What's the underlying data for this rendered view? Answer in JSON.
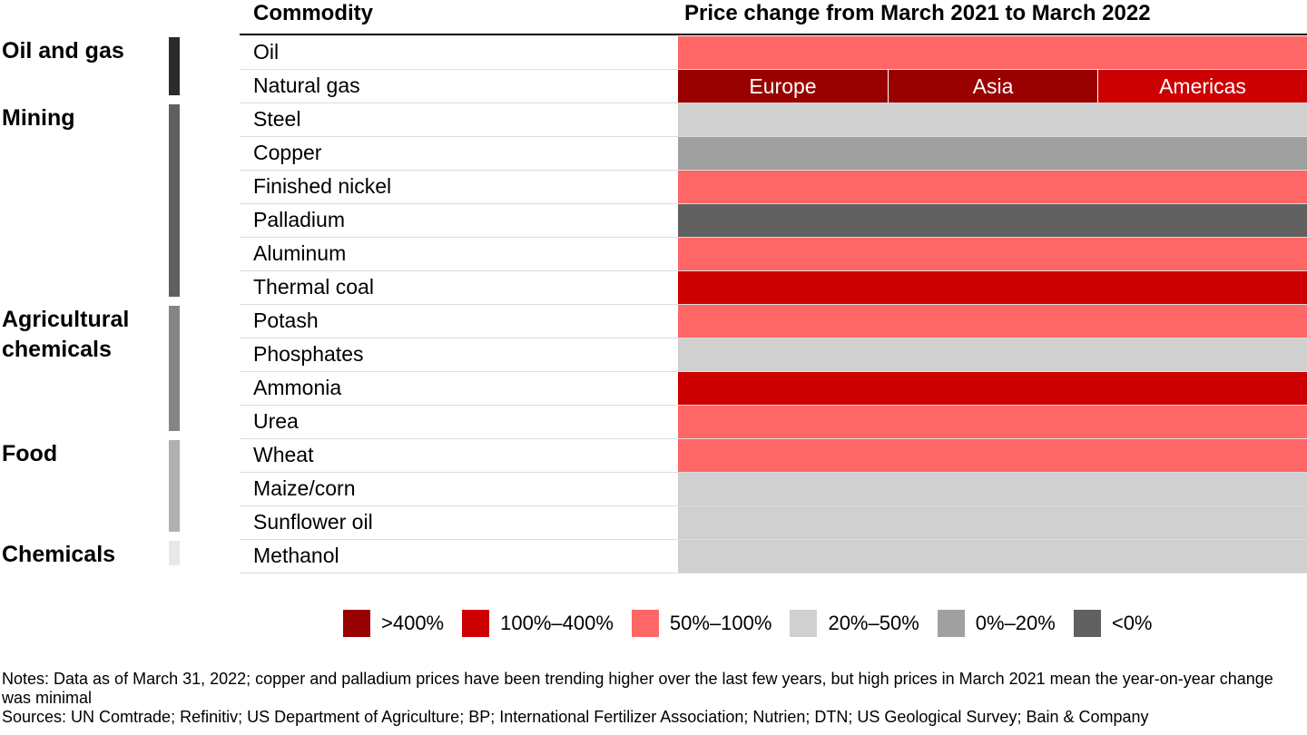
{
  "header": {
    "commodity": "Commodity",
    "change": "Price change from March 2021 to March 2022"
  },
  "groups": [
    {
      "label": "Oil and gas",
      "color": "#2b2b2b",
      "rows": [
        {
          "name": "Oil",
          "color": "#ff6666"
        },
        {
          "name": "Natural gas",
          "regions": [
            {
              "label": "Europe",
              "color": "#990000"
            },
            {
              "label": "Asia",
              "color": "#990000"
            },
            {
              "label": "Americas",
              "color": "#cc0000"
            }
          ]
        }
      ]
    },
    {
      "label": "Mining",
      "color": "#5f5f5f",
      "rows": [
        {
          "name": "Steel",
          "color": "#d0d0d0"
        },
        {
          "name": "Copper",
          "color": "#a0a0a0"
        },
        {
          "name": "Finished nickel",
          "color": "#ff6666"
        },
        {
          "name": "Palladium",
          "color": "#606060"
        },
        {
          "name": "Aluminum",
          "color": "#ff6666"
        },
        {
          "name": "Thermal coal",
          "color": "#cc0000"
        }
      ]
    },
    {
      "label": "Agricultural chemicals",
      "color": "#858585",
      "rows": [
        {
          "name": "Potash",
          "color": "#ff6666"
        },
        {
          "name": "Phosphates",
          "color": "#d0d0d0"
        },
        {
          "name": "Ammonia",
          "color": "#cc0000"
        },
        {
          "name": "Urea",
          "color": "#ff6666"
        }
      ]
    },
    {
      "label": "Food",
      "color": "#b0b0b0",
      "rows": [
        {
          "name": "Wheat",
          "color": "#ff6666"
        },
        {
          "name": "Maize/corn",
          "color": "#d0d0d0"
        },
        {
          "name": "Sunflower oil",
          "color": "#d0d0d0"
        }
      ]
    },
    {
      "label": "Chemicals",
      "color": "#e8e8e8",
      "rows": [
        {
          "name": "Methanol",
          "color": "#d0d0d0"
        }
      ]
    }
  ],
  "legend": [
    {
      "label": ">400%",
      "color": "#990000"
    },
    {
      "label": "100%–400%",
      "color": "#cc0000"
    },
    {
      "label": "50%–100%",
      "color": "#ff6666"
    },
    {
      "label": "20%–50%",
      "color": "#d0d0d0"
    },
    {
      "label": "0%–20%",
      "color": "#a0a0a0"
    },
    {
      "label": "<0%",
      "color": "#606060"
    }
  ],
  "notes": [
    "Notes: Data as of March 31, 2022; copper and palladium prices have been trending higher over the last few years, but high prices in March 2021 mean the year-on-year change was minimal",
    "Sources: UN Comtrade; Refinitiv; US Department of Agriculture; BP; International Fertilizer Association; Nutrien; DTN; US Geological Survey; Bain & Company"
  ]
}
